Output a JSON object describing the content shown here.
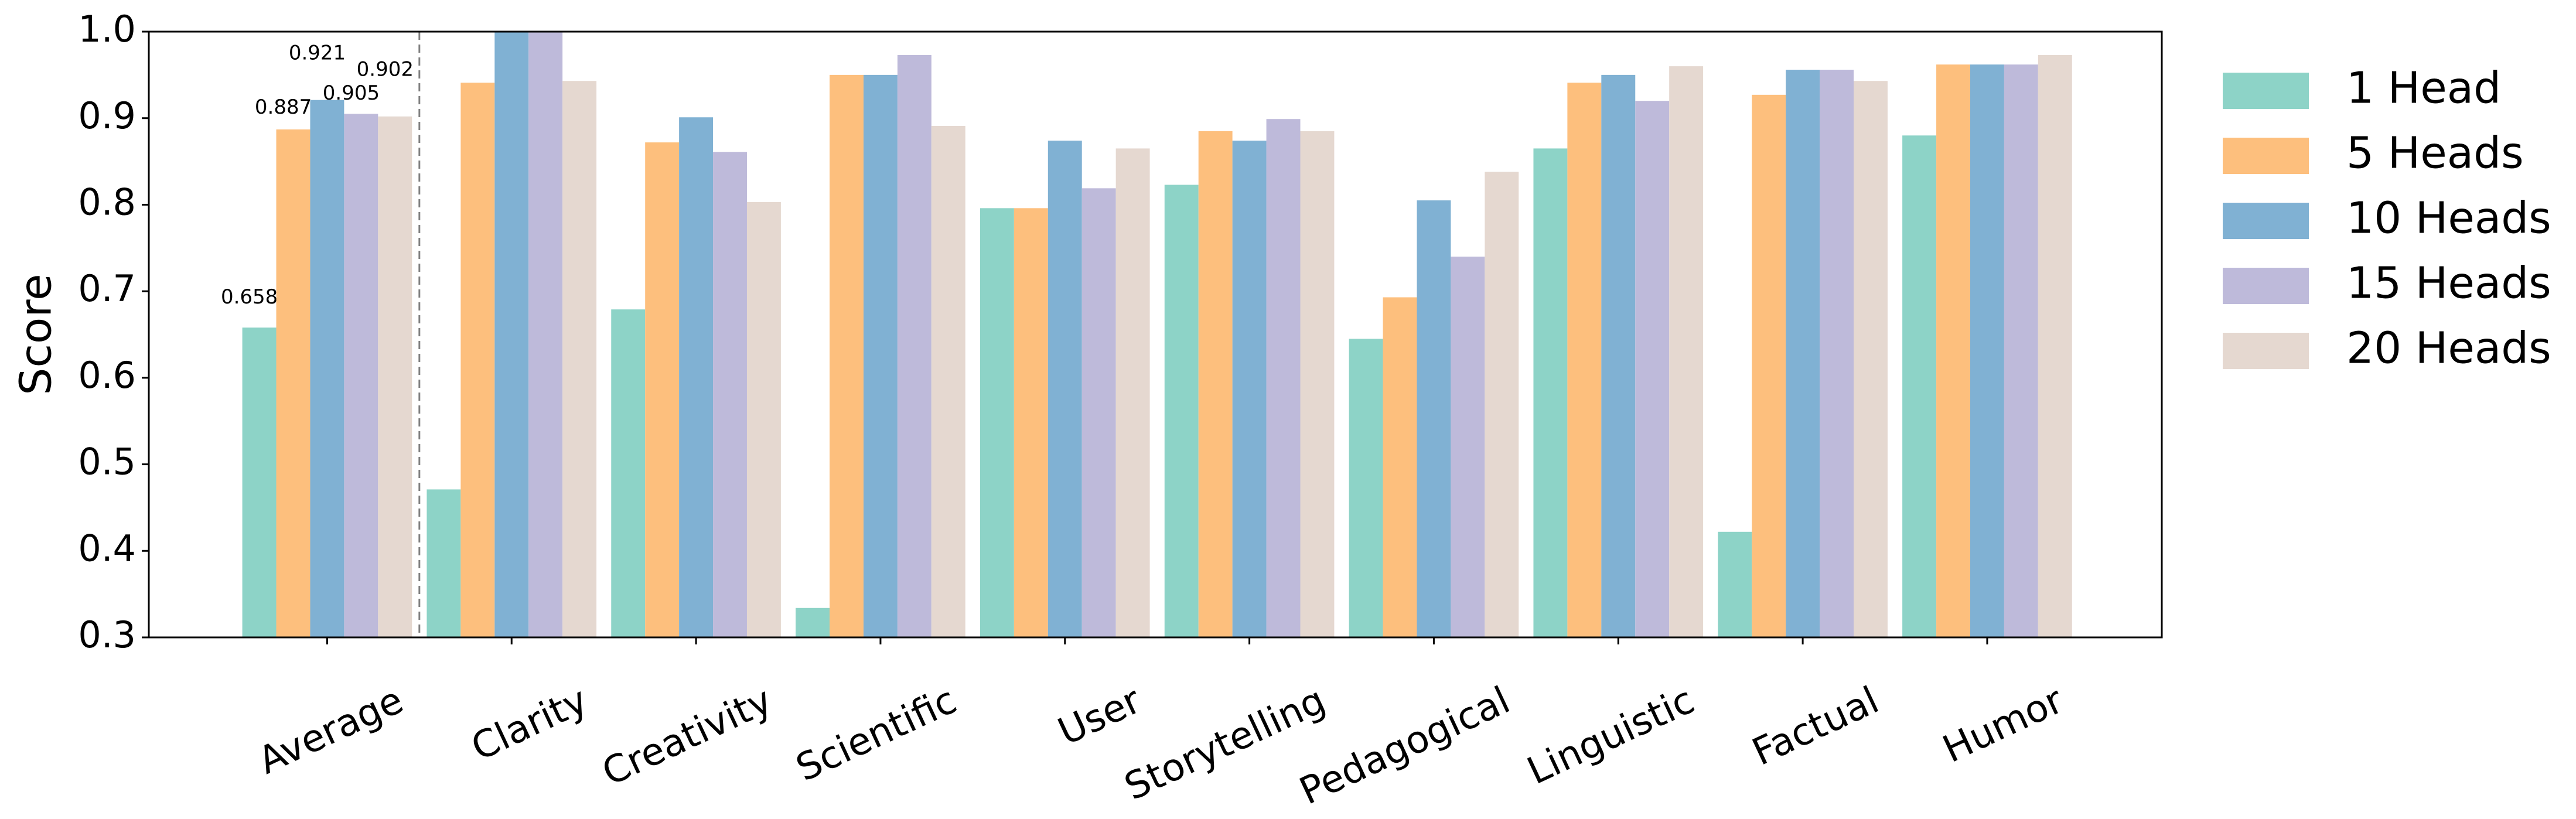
{
  "chart_data": {
    "type": "bar",
    "y_label": "Score",
    "categories": [
      "Average",
      "Clarity",
      "Creativity",
      "Scientific",
      "User",
      "Storytelling",
      "Pedagogical",
      "Linguistic",
      "Factual",
      "Humor"
    ],
    "series": [
      {
        "name": "1 Head",
        "color": "#8dd3c7",
        "values": [
          0.658,
          0.471,
          0.679,
          0.334,
          0.796,
          0.823,
          0.645,
          0.865,
          0.422,
          0.88
        ]
      },
      {
        "name": "5 Heads",
        "color": "#fdbf7d",
        "values": [
          0.887,
          0.941,
          0.872,
          0.95,
          0.796,
          0.885,
          0.693,
          0.941,
          0.927,
          0.962
        ]
      },
      {
        "name": "10 Heads",
        "color": "#80b1d3",
        "values": [
          0.921,
          1.0,
          0.901,
          0.95,
          0.874,
          0.874,
          0.805,
          0.95,
          0.956,
          0.962
        ]
      },
      {
        "name": "15 Heads",
        "color": "#bebada",
        "values": [
          0.905,
          1.0,
          0.861,
          0.973,
          0.819,
          0.899,
          0.74,
          0.92,
          0.956,
          0.962
        ]
      },
      {
        "name": "20 Heads",
        "color": "#e5d8d0",
        "values": [
          0.902,
          0.943,
          0.803,
          0.891,
          0.865,
          0.885,
          0.838,
          0.96,
          0.943,
          0.973
        ]
      }
    ],
    "data_labels_category_index": 0,
    "separator_after_category_index": 0,
    "ylim": [
      0.3,
      1.0
    ],
    "yticks": [
      0.3,
      0.4,
      0.5,
      0.6,
      0.7,
      0.8,
      0.9,
      {
        "value": 1.0,
        "label": "1.0"
      }
    ],
    "grid": false,
    "legend": "right outside"
  }
}
